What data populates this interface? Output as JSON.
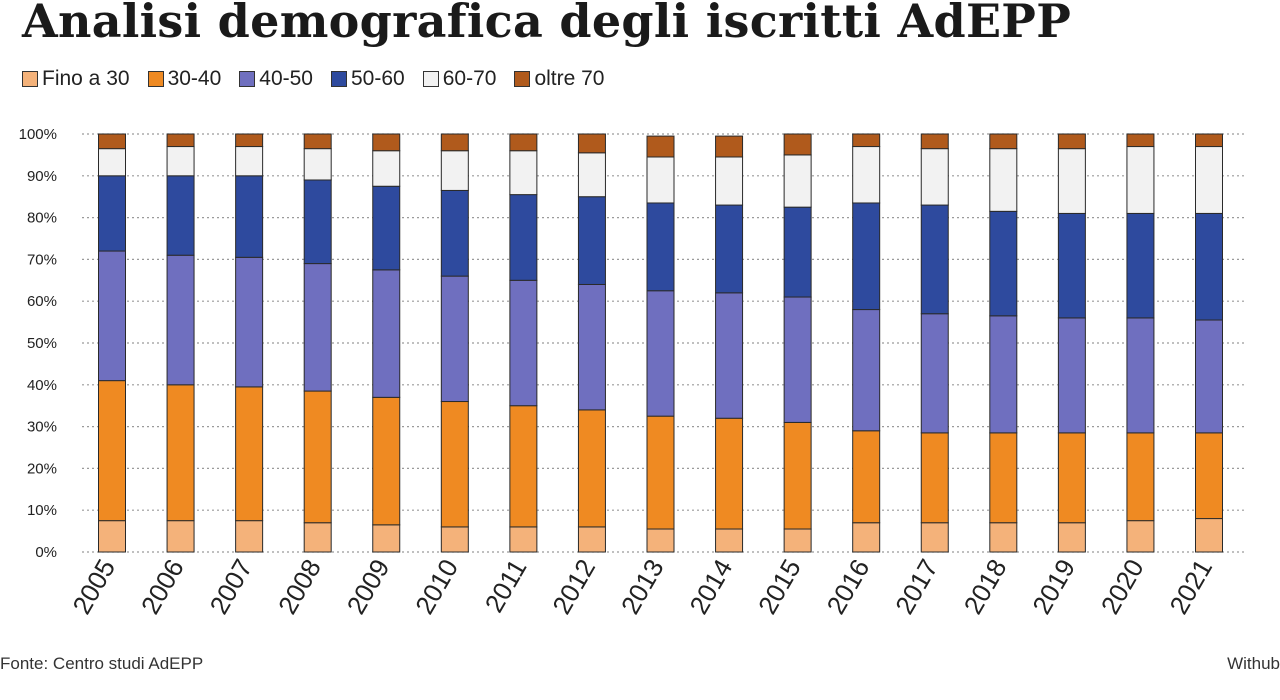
{
  "title": "Analisi demografica degli iscritti AdEPP",
  "source": "Fonte: Centro studi AdEPP",
  "credit": "Withub",
  "chart_data": {
    "type": "bar",
    "stacked": true,
    "percent": true,
    "categories": [
      "2005",
      "2006",
      "2007",
      "2008",
      "2009",
      "2010",
      "2011",
      "2012",
      "2013",
      "2014",
      "2015",
      "2016",
      "2017",
      "2018",
      "2019",
      "2020",
      "2021"
    ],
    "ylim": [
      0,
      100
    ],
    "yticks": [
      "0%",
      "10%",
      "20%",
      "30%",
      "40%",
      "50%",
      "60%",
      "70%",
      "80%",
      "90%",
      "100%"
    ],
    "grid": true,
    "legend_position": "top-left",
    "series": [
      {
        "name": "Fino a 30",
        "color": "#f4b27a",
        "values": [
          7.5,
          7.5,
          7.5,
          7,
          6.5,
          6,
          6,
          6,
          5.5,
          5.5,
          5.5,
          7,
          7,
          7,
          7,
          7.5,
          8
        ]
      },
      {
        "name": "30-40",
        "color": "#ef8a22",
        "values": [
          33.5,
          32.5,
          32,
          31.5,
          30.5,
          30,
          29,
          28,
          27,
          26.5,
          25.5,
          22,
          21.5,
          21.5,
          21.5,
          21,
          20.5
        ]
      },
      {
        "name": "40-50",
        "color": "#6f6fbf",
        "values": [
          31,
          31,
          31,
          30.5,
          30.5,
          30,
          30,
          30,
          30,
          30,
          30,
          29,
          28.5,
          28,
          27.5,
          27.5,
          27
        ]
      },
      {
        "name": "50-60",
        "color": "#2e4a9e",
        "values": [
          18,
          19,
          19.5,
          20,
          20,
          20.5,
          20.5,
          21,
          21,
          21,
          21.5,
          25.5,
          26,
          25,
          25,
          25,
          25.5
        ]
      },
      {
        "name": "60-70",
        "color": "#f2f2f2",
        "values": [
          6.5,
          7,
          7,
          7.5,
          8.5,
          9.5,
          10.5,
          10.5,
          11,
          11.5,
          12.5,
          13.5,
          13.5,
          15,
          15.5,
          16,
          16
        ]
      },
      {
        "name": "oltre 70",
        "color": "#b05a1c",
        "values": [
          3.5,
          3,
          3,
          3.5,
          4,
          4,
          4,
          4.5,
          5,
          5,
          5,
          3,
          3.5,
          3.5,
          3.5,
          3,
          3
        ]
      }
    ]
  }
}
